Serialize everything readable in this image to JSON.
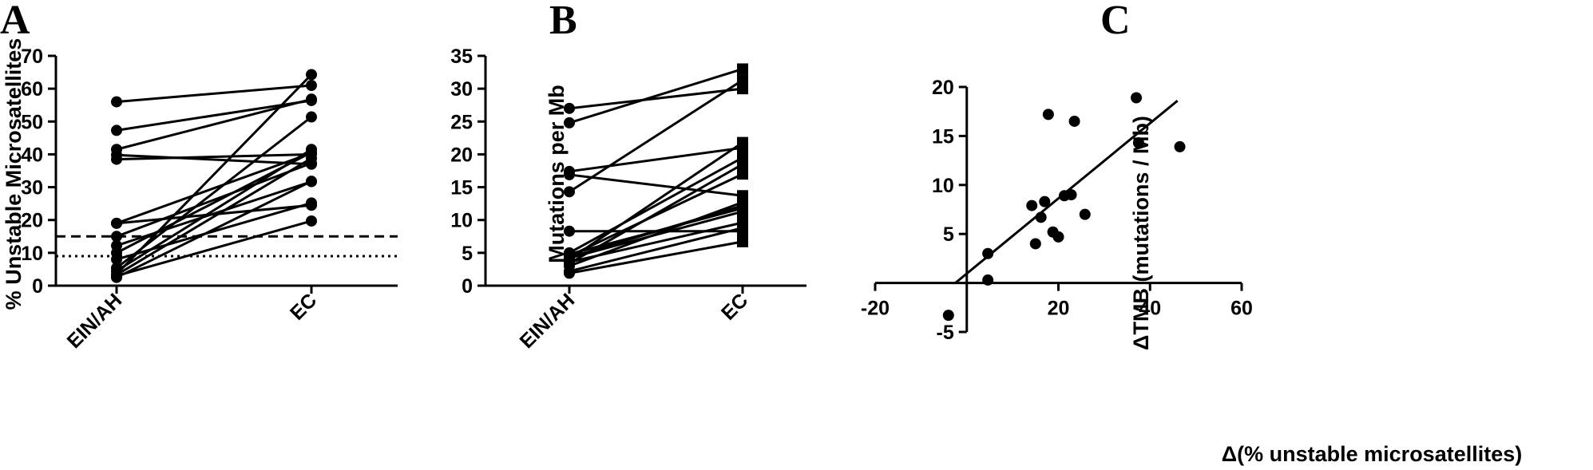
{
  "chart_data": [
    {
      "panel": "A",
      "type": "line",
      "ylabel": "% Unstable  Microsatellites",
      "categories": [
        "EIN/AH",
        "EC"
      ],
      "ylim": [
        0,
        70
      ],
      "yticks": [
        0,
        10,
        20,
        30,
        40,
        50,
        60,
        70
      ],
      "marker": "circle",
      "thresholds": [
        {
          "value": 15,
          "style": "dashed"
        },
        {
          "value": 9,
          "style": "dotted"
        }
      ],
      "pairs": [
        [
          56,
          61
        ],
        [
          47.3,
          56.4
        ],
        [
          41.5,
          56.8
        ],
        [
          39.8,
          37
        ],
        [
          38.5,
          40
        ],
        [
          19,
          24.5
        ],
        [
          19,
          40.4
        ],
        [
          15,
          37.3
        ],
        [
          12.2,
          31.7
        ],
        [
          10,
          40.6
        ],
        [
          8,
          25.2
        ],
        [
          5.4,
          51.4
        ],
        [
          4.5,
          41.5
        ],
        [
          3.3,
          38.8
        ],
        [
          3,
          19.7
        ],
        [
          2.5,
          31.8
        ],
        [
          3.5,
          64.3
        ]
      ]
    },
    {
      "panel": "B",
      "type": "line",
      "ylabel": "Mutations per Mb",
      "categories": [
        "EIN/AH",
        "EC"
      ],
      "ylim": [
        0,
        35
      ],
      "yticks": [
        0,
        5,
        10,
        15,
        20,
        25,
        30,
        35
      ],
      "marker": "square",
      "pairs": [
        [
          27,
          30
        ],
        [
          24.8,
          33
        ],
        [
          17.4,
          21
        ],
        [
          16.9,
          13.7
        ],
        [
          14.3,
          31.3
        ],
        [
          8.3,
          8.3
        ],
        [
          5,
          19.5
        ],
        [
          4.8,
          11.8
        ],
        [
          4.5,
          17
        ],
        [
          4.3,
          12.2
        ],
        [
          4,
          21.8
        ],
        [
          3.6,
          9.6
        ],
        [
          3.4,
          18.5
        ],
        [
          3,
          12.7
        ],
        [
          2.2,
          8.8
        ],
        [
          1.9,
          6.7
        ],
        [
          4.2,
          11.3
        ]
      ]
    },
    {
      "panel": "C",
      "type": "scatter",
      "xlabel": "Δ(% unstable microsatellites)",
      "ylabel": "ΔTMB (mutations / Mb)",
      "xlim": [
        -20,
        60
      ],
      "ylim": [
        -5,
        20
      ],
      "xticks": [
        -20,
        20,
        40,
        60
      ],
      "yticks": [
        -5,
        5,
        10,
        15,
        20
      ],
      "points": [
        [
          -4,
          -3.3
        ],
        [
          4.6,
          0.3
        ],
        [
          4.6,
          3
        ],
        [
          14.2,
          7.9
        ],
        [
          15,
          4
        ],
        [
          16.2,
          6.7
        ],
        [
          17,
          8.3
        ],
        [
          17.8,
          17.2
        ],
        [
          18.8,
          5.2
        ],
        [
          20,
          4.7
        ],
        [
          21.3,
          8.9
        ],
        [
          22.8,
          9
        ],
        [
          23.5,
          16.5
        ],
        [
          25.8,
          7
        ],
        [
          37,
          18.9
        ],
        [
          37.5,
          14.3
        ],
        [
          46.5,
          13.9
        ]
      ],
      "fit_line": [
        [
          -2.5,
          0
        ],
        [
          46,
          18.6
        ]
      ]
    }
  ]
}
